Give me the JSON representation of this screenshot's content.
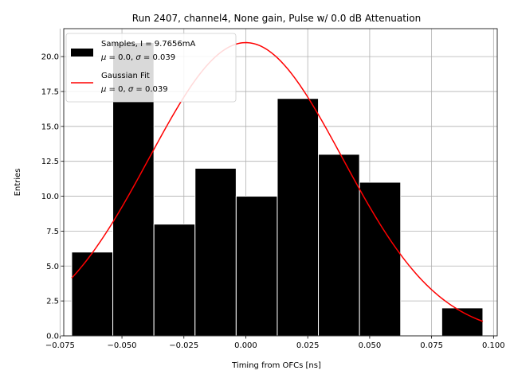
{
  "chart_data": {
    "type": "bar",
    "title": "Run 2407, channel4, None gain, Pulse w/ 0.0 dB Attenuation",
    "xlabel": "Timing from OFCs [ns]",
    "ylabel": "Entries",
    "xlim": [
      -0.0735,
      0.1015
    ],
    "ylim": [
      0,
      22
    ],
    "grid": true,
    "legend_position": "top-left",
    "x_ticks": [
      -0.075,
      -0.05,
      -0.025,
      0.0,
      0.025,
      0.05,
      0.075,
      0.1
    ],
    "x_tick_labels": [
      "−0.075",
      "−0.050",
      "−0.025",
      "0.000",
      "0.025",
      "0.050",
      "0.075",
      "0.100"
    ],
    "y_ticks": [
      0,
      2.5,
      5,
      7.5,
      10,
      12.5,
      15,
      17.5,
      20
    ],
    "y_tick_labels": [
      "0.0",
      "2.5",
      "5.0",
      "7.5",
      "10.0",
      "12.5",
      "15.0",
      "17.5",
      "20.0"
    ],
    "histogram": {
      "name": "Samples, I = 9.7656mA",
      "stats_label": {
        "mu_value": "0.0",
        "sigma_value": "0.039"
      },
      "color": "#000000",
      "edge_color": "#ffffff",
      "bin_edges": [
        -0.0703,
        -0.0537,
        -0.0371,
        -0.0205,
        -0.0039,
        0.0127,
        0.0293,
        0.0459,
        0.0625,
        0.0791,
        0.0957
      ],
      "counts": [
        6,
        21,
        8,
        12,
        10,
        17,
        13,
        11,
        0,
        2
      ]
    },
    "fit": {
      "name": "Gaussian Fit",
      "stats_label": {
        "mu_value": "0",
        "sigma_value": "0.039"
      },
      "color": "#ff0000",
      "amplitude": 21,
      "mu": 0,
      "sigma": 0.039,
      "x_range": [
        -0.0703,
        0.0957
      ]
    }
  }
}
